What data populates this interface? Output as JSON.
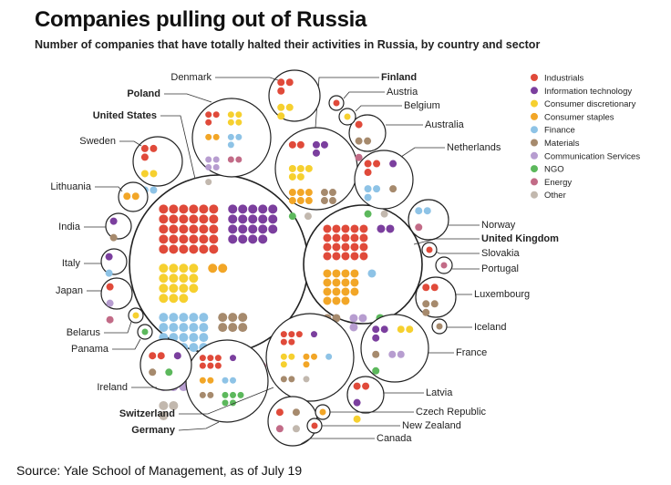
{
  "header": {
    "title": "Companies pulling out of Russia",
    "subtitle": "Number of companies that have totally halted their activities in Russia, by country and sector"
  },
  "footer": {
    "source": "Source: Yale School of Management, as of July 19"
  },
  "sectors": [
    {
      "key": "ind",
      "label": "Industrials",
      "color": "#e04a3a"
    },
    {
      "key": "it",
      "label": "Information technology",
      "color": "#7b3f9e"
    },
    {
      "key": "cd",
      "label": "Consumer discretionary",
      "color": "#f6d02f"
    },
    {
      "key": "cs",
      "label": "Consumer staples",
      "color": "#f2a627"
    },
    {
      "key": "fin",
      "label": "Finance",
      "color": "#8ec3e6"
    },
    {
      "key": "mat",
      "label": "Materials",
      "color": "#a68a6d"
    },
    {
      "key": "com",
      "label": "Communication Services",
      "color": "#b79dd0"
    },
    {
      "key": "ngo",
      "label": "NGO",
      "color": "#5cb85c"
    },
    {
      "key": "en",
      "label": "Energy",
      "color": "#c26b87"
    },
    {
      "key": "oth",
      "label": "Other",
      "color": "#c2b8ae"
    }
  ],
  "chart_data": {
    "type": "packed-bubble",
    "title": "Companies pulling out of Russia",
    "subtitle": "Number of companies that have totally halted their activities in Russia, by country and sector",
    "countries": [
      {
        "name": "United States",
        "bold": true,
        "counts": {
          "ind": 30,
          "it": 19,
          "cs": 2,
          "fin": 20,
          "mat": 6,
          "com": 12,
          "ngo": 5,
          "cd": 15,
          "en": 2,
          "oth": 3
        }
      },
      {
        "name": "United Kingdom",
        "bold": true,
        "counts": {
          "ind": 20,
          "cs": 15,
          "it": 2,
          "mat": 2,
          "com": 3,
          "fin": 1,
          "oth": 2,
          "ngo": 1
        }
      },
      {
        "name": "Finland",
        "bold": true,
        "counts": {
          "cs": 6,
          "cd": 5,
          "mat": 4,
          "it": 3,
          "ind": 2,
          "ngo": 1,
          "oth": 1
        }
      },
      {
        "name": "Germany",
        "bold": true,
        "counts": {
          "ind": 6,
          "ngo": 5,
          "cs": 2,
          "fin": 2,
          "mat": 2,
          "it": 1
        }
      },
      {
        "name": "Poland",
        "bold": true,
        "counts": {
          "ind": 3,
          "cd": 4,
          "com": 4,
          "fin": 3,
          "cs": 2,
          "en": 2,
          "oth": 1
        }
      },
      {
        "name": "Switzerland",
        "bold": true,
        "counts": {
          "ind": 5,
          "cd": 3,
          "cs": 3,
          "mat": 2,
          "fin": 1,
          "it": 1,
          "oth": 1
        }
      },
      {
        "name": "Denmark",
        "counts": {
          "ind": 3,
          "cd": 3
        }
      },
      {
        "name": "Sweden",
        "counts": {
          "fin": 2,
          "cd": 2,
          "ind": 3
        }
      },
      {
        "name": "Netherlands",
        "counts": {
          "ind": 3,
          "fin": 3,
          "mat": 1,
          "it": 1,
          "ngo": 1,
          "oth": 1
        }
      },
      {
        "name": "France",
        "counts": {
          "com": 2,
          "ngo": 1,
          "it": 3,
          "cd": 2,
          "mat": 1
        }
      },
      {
        "name": "Ireland",
        "counts": {
          "ngo": 1,
          "ind": 2,
          "mat": 1,
          "it": 1
        }
      },
      {
        "name": "Luxembourg",
        "counts": {
          "mat": 3,
          "ind": 2
        }
      },
      {
        "name": "Australia",
        "counts": {
          "en": 1,
          "ind": 1,
          "mat": 2
        }
      },
      {
        "name": "Norway",
        "counts": {
          "fin": 2,
          "en": 1
        }
      },
      {
        "name": "Latvia",
        "counts": {
          "ind": 2,
          "cd": 1,
          "it": 1
        }
      },
      {
        "name": "Canada",
        "counts": {
          "ind": 1,
          "oth": 1,
          "mat": 1,
          "en": 1
        }
      },
      {
        "name": "Lithuania",
        "counts": {
          "cs": 2
        }
      },
      {
        "name": "India",
        "counts": {
          "mat": 1,
          "it": 1
        }
      },
      {
        "name": "Italy",
        "counts": {
          "fin": 1,
          "it": 1
        }
      },
      {
        "name": "Japan",
        "counts": {
          "com": 1,
          "en": 1,
          "ind": 1
        }
      },
      {
        "name": "Austria",
        "counts": {
          "ind": 1
        }
      },
      {
        "name": "Belgium",
        "counts": {
          "cd": 1
        }
      },
      {
        "name": "Slovakia",
        "counts": {
          "ind": 1
        }
      },
      {
        "name": "Portugal",
        "counts": {
          "en": 1
        }
      },
      {
        "name": "Iceland",
        "counts": {
          "mat": 1
        }
      },
      {
        "name": "Belarus",
        "counts": {
          "cd": 1
        }
      },
      {
        "name": "Panama",
        "counts": {
          "ngo": 1
        }
      },
      {
        "name": "Czech Republic",
        "counts": {
          "cs": 1
        }
      },
      {
        "name": "New Zealand",
        "counts": {
          "ind": 1
        }
      }
    ]
  }
}
